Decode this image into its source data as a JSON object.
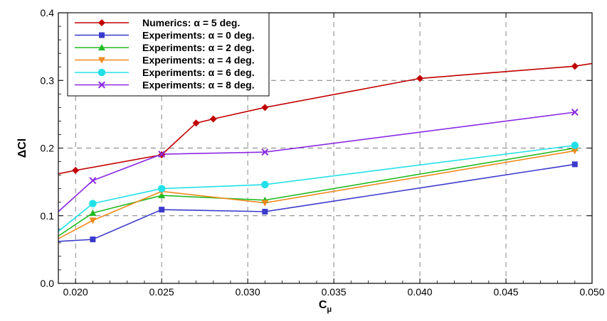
{
  "chart_data": {
    "type": "line",
    "xlabel": "C",
    "xlabel_sub": "μ",
    "ylabel": "ΔCl",
    "xlim": [
      0.019,
      0.05
    ],
    "ylim": [
      0.0,
      0.4
    ],
    "xticks": [
      0.02,
      0.025,
      0.03,
      0.035,
      0.04,
      0.045,
      0.05
    ],
    "xtick_labels": [
      "0.020",
      "0.025",
      "0.030",
      "0.035",
      "0.040",
      "0.045",
      "0.050"
    ],
    "yticks": [
      0.0,
      0.1,
      0.2,
      0.3,
      0.4
    ],
    "ytick_labels": [
      "0.0",
      "0.1",
      "0.2",
      "0.3",
      "0.4"
    ],
    "grid": true,
    "legend_position": "top-left",
    "series": [
      {
        "name": "Numerics: α = 5 deg.",
        "color": "#c00000",
        "marker": "diamond",
        "x": [
          0.02,
          0.025,
          0.027,
          0.028,
          0.031,
          0.04,
          0.049
        ],
        "y": [
          0.167,
          0.19,
          0.237,
          0.243,
          0.26,
          0.303,
          0.321
        ],
        "line_x": [
          0.019,
          0.02,
          0.025,
          0.027,
          0.028,
          0.031,
          0.04,
          0.049,
          0.05
        ],
        "line_y": [
          0.162,
          0.167,
          0.19,
          0.237,
          0.243,
          0.26,
          0.303,
          0.321,
          0.325
        ]
      },
      {
        "name": "Experiments: α = 0 deg.",
        "color": "#3a3acc",
        "marker": "square",
        "x": [
          0.021,
          0.025,
          0.031,
          0.049
        ],
        "y": [
          0.065,
          0.109,
          0.106,
          0.176
        ],
        "line_x": [
          0.019,
          0.021,
          0.025,
          0.031,
          0.049
        ],
        "line_y": [
          0.062,
          0.065,
          0.109,
          0.106,
          0.176
        ]
      },
      {
        "name": "Experiments: α = 2 deg.",
        "color": "#22bb22",
        "marker": "triangle-up",
        "x": [
          0.021,
          0.025,
          0.031,
          0.049
        ],
        "y": [
          0.104,
          0.13,
          0.123,
          0.2
        ],
        "line_x": [
          0.019,
          0.021,
          0.025,
          0.031,
          0.049
        ],
        "line_y": [
          0.07,
          0.104,
          0.13,
          0.123,
          0.2
        ]
      },
      {
        "name": "Experiments: α = 4 deg.",
        "color": "#f08a1e",
        "marker": "triangle-down",
        "x": [
          0.021,
          0.025,
          0.031,
          0.049
        ],
        "y": [
          0.093,
          0.136,
          0.119,
          0.196
        ],
        "line_x": [
          0.019,
          0.021,
          0.025,
          0.031,
          0.049
        ],
        "line_y": [
          0.066,
          0.093,
          0.136,
          0.119,
          0.196
        ]
      },
      {
        "name": "Experiments: α = 6 deg.",
        "color": "#22e0e8",
        "marker": "circle",
        "x": [
          0.021,
          0.025,
          0.031,
          0.049
        ],
        "y": [
          0.118,
          0.14,
          0.146,
          0.204
        ],
        "line_x": [
          0.019,
          0.021,
          0.025,
          0.031,
          0.049
        ],
        "line_y": [
          0.077,
          0.118,
          0.14,
          0.146,
          0.204
        ]
      },
      {
        "name": "Experiments: α = 8 deg.",
        "color": "#8a2be2",
        "marker": "x",
        "x": [
          0.021,
          0.025,
          0.031,
          0.049
        ],
        "y": [
          0.152,
          0.191,
          0.194,
          0.253
        ],
        "line_x": [
          0.019,
          0.021,
          0.025,
          0.031,
          0.049
        ],
        "line_y": [
          0.106,
          0.152,
          0.191,
          0.194,
          0.253
        ]
      }
    ]
  }
}
